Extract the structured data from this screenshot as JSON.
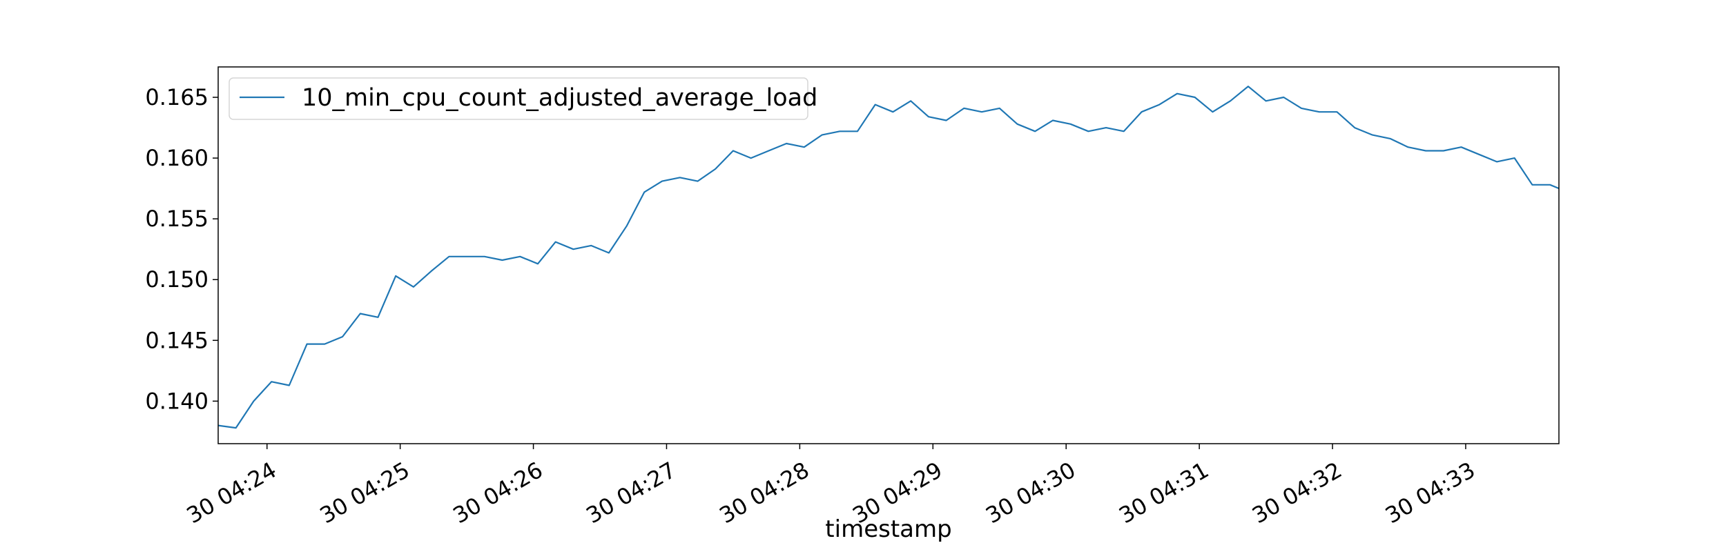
{
  "chart_data": {
    "type": "line",
    "title": "",
    "xlabel": "timestamp",
    "ylabel": "",
    "x_tick_labels": [
      "30 04:24",
      "30 04:25",
      "30 04:26",
      "30 04:27",
      "30 04:28",
      "30 04:29",
      "30 04:30",
      "30 04:31",
      "30 04:32",
      "30 04:33"
    ],
    "y_tick_labels": [
      "0.140",
      "0.145",
      "0.150",
      "0.155",
      "0.160",
      "0.165"
    ],
    "y_ticks": [
      0.14,
      0.145,
      0.15,
      0.155,
      0.16,
      0.165
    ],
    "xlim": [
      "30 04:23:38",
      "30 04:33:42"
    ],
    "ylim": [
      0.1365,
      0.1675
    ],
    "grid": false,
    "legend": "upper-left",
    "series": [
      {
        "name": "10_min_cpu_count_adjusted_average_load",
        "color": "#1f77b4",
        "x": [
          "30 04:23:38",
          "30 04:23:46",
          "30 04:23:54",
          "30 04:24:02",
          "30 04:24:10",
          "30 04:24:18",
          "30 04:24:26",
          "30 04:24:34",
          "30 04:24:42",
          "30 04:24:50",
          "30 04:24:58",
          "30 04:25:06",
          "30 04:25:14",
          "30 04:25:22",
          "30 04:25:30",
          "30 04:25:38",
          "30 04:25:46",
          "30 04:25:54",
          "30 04:26:02",
          "30 04:26:10",
          "30 04:26:18",
          "30 04:26:26",
          "30 04:26:34",
          "30 04:26:42",
          "30 04:26:50",
          "30 04:26:58",
          "30 04:27:06",
          "30 04:27:14",
          "30 04:27:22",
          "30 04:27:30",
          "30 04:27:38",
          "30 04:27:46",
          "30 04:27:54",
          "30 04:28:02",
          "30 04:28:10",
          "30 04:28:18",
          "30 04:28:26",
          "30 04:28:34",
          "30 04:28:42",
          "30 04:28:50",
          "30 04:28:58",
          "30 04:29:06",
          "30 04:29:14",
          "30 04:29:22",
          "30 04:29:30",
          "30 04:29:38",
          "30 04:29:46",
          "30 04:29:54",
          "30 04:30:02",
          "30 04:30:10",
          "30 04:30:18",
          "30 04:30:26",
          "30 04:30:34",
          "30 04:30:42",
          "30 04:30:50",
          "30 04:30:58",
          "30 04:31:06",
          "30 04:31:14",
          "30 04:31:22",
          "30 04:31:30",
          "30 04:31:38",
          "30 04:31:46",
          "30 04:31:54",
          "30 04:32:02",
          "30 04:32:10",
          "30 04:32:18",
          "30 04:32:26",
          "30 04:32:34",
          "30 04:32:42",
          "30 04:32:50",
          "30 04:32:58",
          "30 04:33:06",
          "30 04:33:14",
          "30 04:33:22",
          "30 04:33:30",
          "30 04:33:38",
          "30 04:33:42"
        ],
        "y": [
          0.138,
          0.1378,
          0.14,
          0.1416,
          0.1413,
          0.1447,
          0.1447,
          0.1453,
          0.1472,
          0.1469,
          0.1503,
          0.1494,
          0.1507,
          0.1519,
          0.1519,
          0.1519,
          0.1516,
          0.1519,
          0.1513,
          0.1531,
          0.1525,
          0.1528,
          0.1522,
          0.1544,
          0.1572,
          0.1581,
          0.1584,
          0.1581,
          0.1591,
          0.1606,
          0.16,
          0.1606,
          0.1612,
          0.1609,
          0.1619,
          0.1622,
          0.1622,
          0.1644,
          0.1638,
          0.1647,
          0.1634,
          0.1631,
          0.1641,
          0.1638,
          0.1641,
          0.1628,
          0.1622,
          0.1631,
          0.1628,
          0.1622,
          0.1625,
          0.1622,
          0.1638,
          0.1644,
          0.1653,
          0.165,
          0.1638,
          0.1647,
          0.1659,
          0.1647,
          0.165,
          0.1641,
          0.1638,
          0.1638,
          0.1625,
          0.1619,
          0.1616,
          0.1609,
          0.1606,
          0.1606,
          0.1609,
          0.1603,
          0.1597,
          0.16,
          0.1578,
          0.1578,
          0.1575
        ]
      }
    ]
  }
}
